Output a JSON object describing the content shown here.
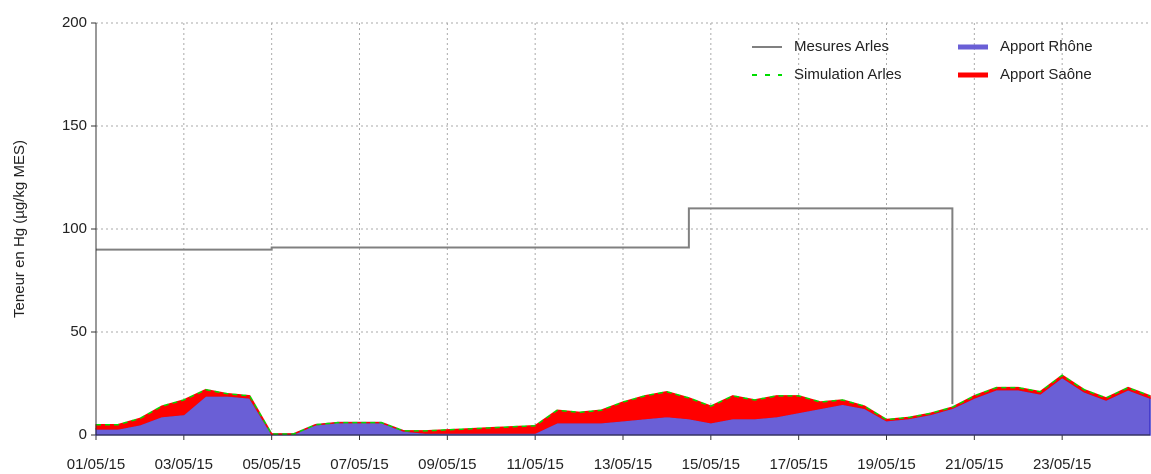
{
  "chart_data": {
    "type": "line",
    "ylabel": "Teneur en Hg (µg/kg MES)",
    "x": [
      "2015-05-01T00:00",
      "2015-05-01T12:00",
      "2015-05-02T00:00",
      "2015-05-02T12:00",
      "2015-05-03T00:00",
      "2015-05-03T12:00",
      "2015-05-04T00:00",
      "2015-05-04T12:00",
      "2015-05-05T00:00",
      "2015-05-05T12:00",
      "2015-05-06T00:00",
      "2015-05-06T12:00",
      "2015-05-07T00:00",
      "2015-05-07T12:00",
      "2015-05-08T00:00",
      "2015-05-08T12:00",
      "2015-05-09T00:00",
      "2015-05-09T12:00",
      "2015-05-10T00:00",
      "2015-05-10T12:00",
      "2015-05-11T00:00",
      "2015-05-11T12:00",
      "2015-05-12T00:00",
      "2015-05-12T12:00",
      "2015-05-13T00:00",
      "2015-05-13T12:00",
      "2015-05-14T00:00",
      "2015-05-14T12:00",
      "2015-05-15T00:00",
      "2015-05-15T12:00",
      "2015-05-16T00:00",
      "2015-05-16T12:00",
      "2015-05-17T00:00",
      "2015-05-17T12:00",
      "2015-05-18T00:00",
      "2015-05-18T12:00",
      "2015-05-19T00:00",
      "2015-05-19T12:00",
      "2015-05-20T00:00",
      "2015-05-20T12:00",
      "2015-05-21T00:00",
      "2015-05-21T12:00",
      "2015-05-22T00:00",
      "2015-05-22T12:00",
      "2015-05-23T00:00",
      "2015-05-23T12:00",
      "2015-05-24T00:00",
      "2015-05-24T12:00",
      "2015-05-25T00:00"
    ],
    "series": [
      {
        "name": "Mesures Arles",
        "color": "#808080",
        "style": "step",
        "values": [
          90,
          90,
          90,
          90,
          90,
          90,
          90,
          90,
          91,
          91,
          91,
          91,
          91,
          91,
          91,
          91,
          91,
          91,
          91,
          91,
          91,
          91,
          91,
          91,
          91,
          91,
          91,
          110,
          110,
          110,
          110,
          110,
          110,
          110,
          110,
          110,
          110,
          110,
          110,
          15,
          null,
          null,
          null,
          null,
          null,
          null,
          null,
          null,
          null
        ]
      },
      {
        "name": "Simulation Arles",
        "color": "#00dd00",
        "style": "dashed",
        "values": [
          5,
          5,
          8,
          14,
          17,
          22,
          20,
          19,
          0.5,
          0.5,
          5,
          6,
          6,
          6,
          2,
          2,
          2.5,
          3,
          3.5,
          4,
          4.5,
          12,
          11,
          12,
          16,
          19,
          21,
          18,
          14,
          19,
          17,
          19,
          19,
          16,
          17,
          14,
          7.5,
          8.5,
          10.5,
          13.5,
          19,
          23,
          23,
          21,
          29,
          22,
          18,
          23,
          19
        ]
      },
      {
        "name": "Apport Rhône",
        "color": "#6a5fd6",
        "edge": "#3a32c8",
        "style": "area",
        "values": [
          3,
          3,
          5,
          9,
          10,
          19,
          19,
          18,
          0.5,
          0.5,
          5,
          6,
          6,
          6,
          2,
          1,
          1,
          1,
          1,
          1,
          1,
          6,
          6,
          6,
          7,
          8,
          9,
          8,
          6,
          8,
          8,
          9,
          11,
          13,
          15,
          13,
          7,
          8,
          10,
          13,
          18,
          22,
          22,
          20,
          28,
          21,
          17,
          22,
          18
        ]
      },
      {
        "name": "Apport Saône",
        "color": "#ff0000",
        "style": "area",
        "stack": true,
        "values": [
          2,
          2,
          3,
          5,
          7,
          3,
          1,
          1,
          0,
          0,
          0,
          0,
          0,
          0,
          0,
          1,
          1.5,
          2,
          2.5,
          3,
          3.5,
          6,
          5,
          6,
          9,
          11,
          12,
          10,
          8,
          11,
          9,
          10,
          8,
          3,
          2,
          1,
          0.5,
          0.5,
          0.5,
          0.5,
          1,
          1,
          1,
          1,
          1,
          1,
          1,
          1,
          1
        ]
      }
    ],
    "xlim": [
      "2015-05-01T00:00",
      "2015-05-25T00:00"
    ],
    "xticks": [
      {
        "value": "2015-05-01T00:00",
        "label": "01/05/15"
      },
      {
        "value": "2015-05-03T00:00",
        "label": "03/05/15"
      },
      {
        "value": "2015-05-05T00:00",
        "label": "05/05/15"
      },
      {
        "value": "2015-05-07T00:00",
        "label": "07/05/15"
      },
      {
        "value": "2015-05-09T00:00",
        "label": "09/05/15"
      },
      {
        "value": "2015-05-11T00:00",
        "label": "11/05/15"
      },
      {
        "value": "2015-05-13T00:00",
        "label": "13/05/15"
      },
      {
        "value": "2015-05-15T00:00",
        "label": "15/05/15"
      },
      {
        "value": "2015-05-17T00:00",
        "label": "17/05/15"
      },
      {
        "value": "2015-05-19T00:00",
        "label": "19/05/15"
      },
      {
        "value": "2015-05-21T00:00",
        "label": "21/05/15"
      },
      {
        "value": "2015-05-23T00:00",
        "label": "23/05/15"
      }
    ],
    "ylim": [
      0,
      200
    ],
    "yticks": [
      0,
      50,
      100,
      150,
      200
    ],
    "grid": true,
    "legend": "upper right"
  }
}
